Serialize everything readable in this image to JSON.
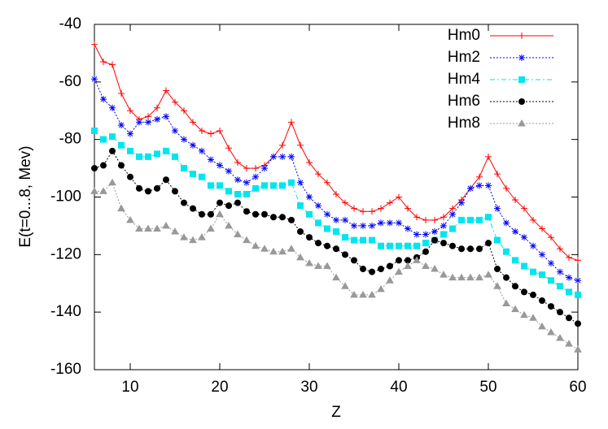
{
  "chart_data": {
    "type": "line",
    "xlabel": "Z",
    "ylabel": "E(t=0...8, Mev)",
    "xlim": [
      6,
      60
    ],
    "ylim": [
      -160,
      -40
    ],
    "xticks": [
      10,
      20,
      30,
      40,
      50,
      60
    ],
    "yticks": [
      -160,
      -140,
      -120,
      -100,
      -80,
      -60,
      -40
    ],
    "legend": "upper right",
    "x": [
      6,
      7,
      8,
      9,
      10,
      11,
      12,
      13,
      14,
      15,
      16,
      17,
      18,
      19,
      20,
      21,
      22,
      23,
      24,
      25,
      26,
      27,
      28,
      29,
      30,
      31,
      32,
      33,
      34,
      35,
      36,
      37,
      38,
      39,
      40,
      41,
      42,
      43,
      44,
      45,
      46,
      47,
      48,
      49,
      50,
      51,
      52,
      53,
      54,
      55,
      56,
      57,
      58,
      59,
      60
    ],
    "series": [
      {
        "name": "Hm0",
        "color": "#ff0000",
        "marker": "plus",
        "dash": "solid",
        "values": [
          -47,
          -53,
          -54,
          -64,
          -70,
          -73,
          -72,
          -69,
          -63,
          -67,
          -70,
          -74,
          -77,
          -78,
          -77,
          -83,
          -88,
          -90,
          -90,
          -89,
          -86,
          -82,
          -74,
          -82,
          -88,
          -92,
          -95,
          -99,
          -102,
          -104,
          -105,
          -105,
          -104,
          -102,
          -100,
          -104,
          -107,
          -108,
          -108,
          -107,
          -104,
          -101,
          -97,
          -93,
          -86,
          -92,
          -97,
          -101,
          -104,
          -108,
          -111,
          -114,
          -118,
          -121,
          -122
        ]
      },
      {
        "name": "Hm2",
        "color": "#0000ff",
        "marker": "star",
        "dash": "dotted",
        "values": [
          -59,
          -66,
          -69,
          -75,
          -78,
          -74,
          -74,
          -73,
          -72,
          -77,
          -80,
          -82,
          -84,
          -87,
          -89,
          -91,
          -94,
          -95,
          -93,
          -90,
          -86,
          -86,
          -86,
          -95,
          -100,
          -103,
          -106,
          -108,
          -108,
          -110,
          -110,
          -110,
          -109,
          -109,
          -109,
          -111,
          -113,
          -113,
          -112,
          -110,
          -106,
          -102,
          -97,
          -96,
          -96,
          -104,
          -109,
          -112,
          -114,
          -117,
          -120,
          -123,
          -126,
          -128,
          -129
        ]
      },
      {
        "name": "Hm4",
        "color": "#00e5ee",
        "marker": "square",
        "dash": "dashdot",
        "values": [
          -77,
          -80,
          -79,
          -82,
          -84,
          -86,
          -86,
          -85,
          -84,
          -86,
          -90,
          -92,
          -93,
          -96,
          -96,
          -98,
          -99,
          -99,
          -97,
          -96,
          -96,
          -96,
          -95,
          -103,
          -106,
          -109,
          -111,
          -112,
          -114,
          -115,
          -115,
          -115,
          -117,
          -117,
          -117,
          -117,
          -117,
          -116,
          -115,
          -113,
          -111,
          -108,
          -108,
          -108,
          -107,
          -115,
          -119,
          -122,
          -124,
          -126,
          -127,
          -129,
          -131,
          -133,
          -134
        ]
      },
      {
        "name": "Hm6",
        "color": "#000000",
        "marker": "circle",
        "dash": "dotted",
        "values": [
          -90,
          -89,
          -84,
          -89,
          -93,
          -97,
          -98,
          -97,
          -94,
          -98,
          -102,
          -104,
          -106,
          -106,
          -102,
          -103,
          -102,
          -105,
          -106,
          -106,
          -107,
          -107,
          -108,
          -112,
          -114,
          -116,
          -117,
          -118,
          -120,
          -122,
          -125,
          -126,
          -125,
          -124,
          -122,
          -122,
          -121,
          -119,
          -115,
          -116,
          -117,
          -118,
          -118,
          -118,
          -116,
          -125,
          -128,
          -131,
          -133,
          -134,
          -136,
          -138,
          -140,
          -142,
          -144
        ]
      },
      {
        "name": "Hm8",
        "color": "#999999",
        "marker": "triangle",
        "dash": "dotted",
        "values": [
          -98,
          -98,
          -95,
          -104,
          -108,
          -111,
          -111,
          -111,
          -110,
          -112,
          -114,
          -115,
          -114,
          -111,
          -106,
          -110,
          -113,
          -115,
          -117,
          -118,
          -119,
          -119,
          -118,
          -121,
          -123,
          -124,
          -124,
          -128,
          -131,
          -134,
          -134,
          -134,
          -132,
          -129,
          -126,
          -124,
          -122,
          -124,
          -125,
          -127,
          -128,
          -128,
          -128,
          -128,
          -127,
          -131,
          -137,
          -139,
          -141,
          -142,
          -145,
          -147,
          -149,
          -151,
          -153
        ]
      }
    ]
  }
}
